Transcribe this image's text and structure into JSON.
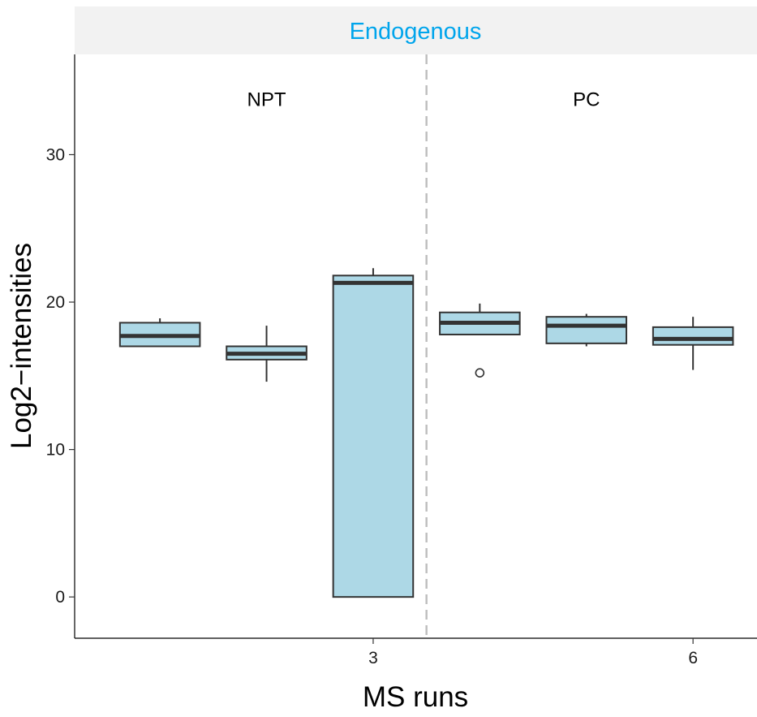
{
  "chart_data": {
    "type": "boxplot",
    "facet_title": "Endogenous",
    "xlabel": "MS runs",
    "ylabel": "Log2−intensities",
    "ylim": [
      -2.8,
      36.8
    ],
    "xlim": [
      0.2,
      6.6
    ],
    "x_ticks": [
      3,
      6
    ],
    "y_ticks": [
      0,
      10,
      20,
      30
    ],
    "group_separator_x": 3.5,
    "groups": [
      {
        "name": "NPT",
        "label_x": 2.0,
        "label_y": 33.8
      },
      {
        "name": "PC",
        "label_x": 5.0,
        "label_y": 33.8
      }
    ],
    "boxes": [
      {
        "run": 1,
        "whisker_low": 17.0,
        "q1": 17.0,
        "median": 17.7,
        "q3": 18.6,
        "whisker_high": 18.9,
        "outliers": []
      },
      {
        "run": 2,
        "whisker_low": 14.6,
        "q1": 16.1,
        "median": 16.5,
        "q3": 17.0,
        "whisker_high": 18.4,
        "outliers": []
      },
      {
        "run": 3,
        "whisker_low": 0.0,
        "q1": 0.0,
        "median": 21.3,
        "q3": 21.8,
        "whisker_high": 22.3,
        "outliers": []
      },
      {
        "run": 4,
        "whisker_low": 17.8,
        "q1": 17.8,
        "median": 18.6,
        "q3": 19.3,
        "whisker_high": 19.9,
        "outliers": [
          15.2
        ]
      },
      {
        "run": 5,
        "whisker_low": 17.0,
        "q1": 17.2,
        "median": 18.4,
        "q3": 19.0,
        "whisker_high": 19.2,
        "outliers": []
      },
      {
        "run": 6,
        "whisker_low": 15.4,
        "q1": 17.1,
        "median": 17.5,
        "q3": 18.3,
        "whisker_high": 19.0,
        "outliers": []
      }
    ],
    "colors": {
      "box_fill": "#add8e6",
      "box_line": "#333333",
      "separator": "#bdbdbd",
      "strip_fill": "#f2f2f2",
      "strip_text": "#00a5ec"
    }
  }
}
